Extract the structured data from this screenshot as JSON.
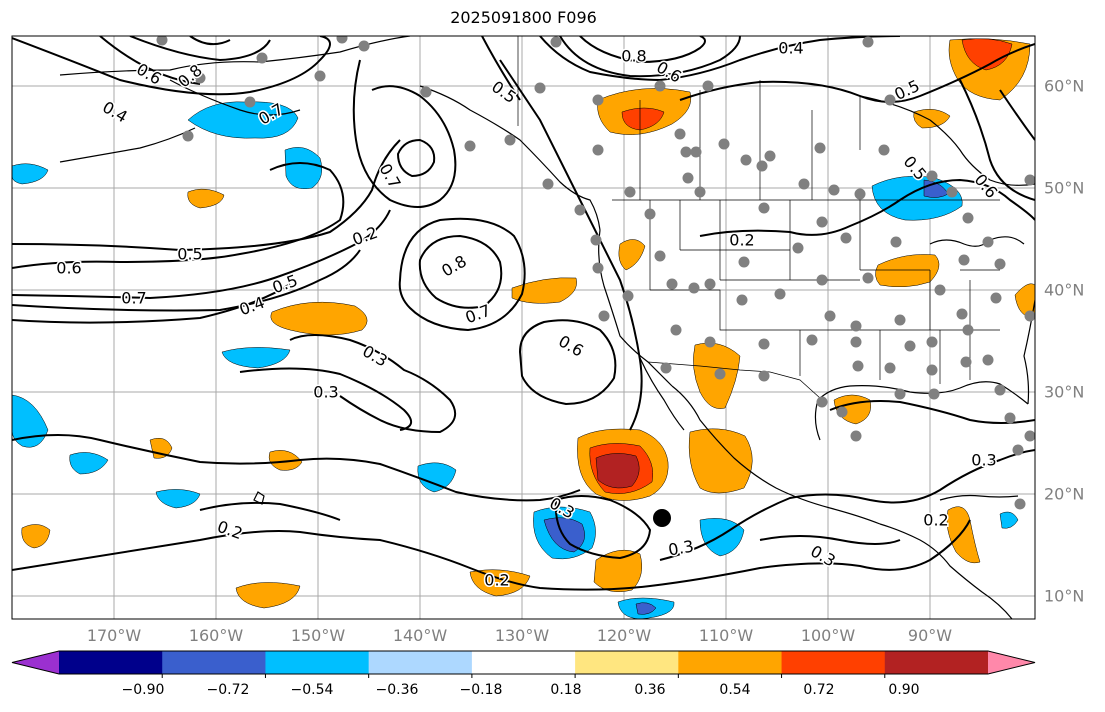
{
  "title": "2025091800 F096",
  "map": {
    "longitude_labels": [
      "170°W",
      "160°W",
      "150°W",
      "140°W",
      "130°W",
      "120°W",
      "110°W",
      "100°W",
      "90°W"
    ],
    "latitude_labels": [
      "60°N",
      "50°N",
      "40°N",
      "30°N",
      "20°N",
      "10°N"
    ],
    "contour_labels": [
      "0.4",
      "0.8",
      "0.8",
      "0.6",
      "0.5",
      "0.7",
      "0.6",
      "0.5",
      "0.7",
      "0.4",
      "0.5",
      "0.6",
      "0.8",
      "0.7",
      "0.5",
      "0.3",
      "0.6",
      "0.2",
      "0.4",
      "0.5",
      "0.7",
      "0.6",
      "0.2",
      "0.3",
      "0.3",
      "0.3",
      "0.2",
      "0.2",
      "0.3",
      "0.3",
      "0.2"
    ],
    "colors": {
      "land_outline": "#000000",
      "contour": "#000000",
      "gridline": "#a8a8a8",
      "station_dot": "#808080",
      "storm_marker": "#000000"
    }
  },
  "colorbar": {
    "tick_labels": [
      "−0.90",
      "−0.72",
      "−0.54",
      "−0.36",
      "−0.18",
      "0.18",
      "0.36",
      "0.54",
      "0.72",
      "0.90"
    ],
    "colors": [
      "#9b30d0",
      "#00008b",
      "#3a5fcd",
      "#00bfff",
      "#add8ff",
      "#ffffff",
      "#ffe680",
      "#ffa500",
      "#ff4000",
      "#b22222",
      "#ff88aa"
    ]
  }
}
